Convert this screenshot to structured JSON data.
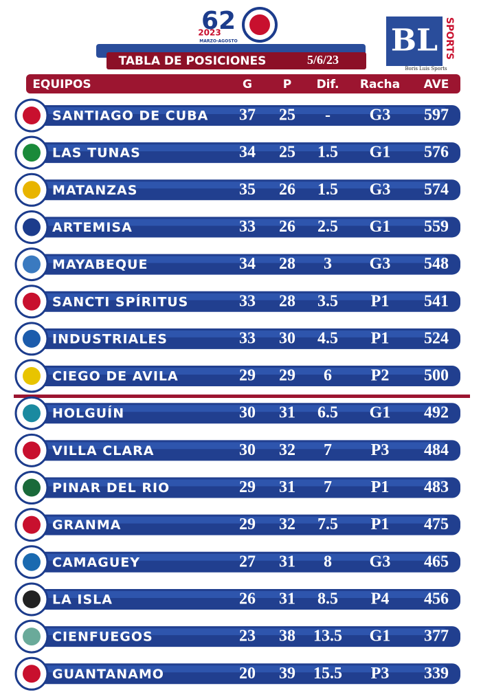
{
  "header": {
    "logo_number": "62",
    "logo_year": "2023",
    "logo_dates": "MARZO-AGOSTO",
    "brand": "SPORTS",
    "brand_sub": "Boris Luis Sports",
    "title": "TABLA DE POSICIONES",
    "date": "5/6/23"
  },
  "table": {
    "columns": [
      "EQUIPOS",
      "G",
      "P",
      "Dif.",
      "Racha",
      "AVE"
    ],
    "rows": [
      [
        "SANTIAGO DE CUBA",
        37,
        25,
        "-",
        "G3",
        597
      ],
      [
        "LAS TUNAS",
        34,
        25,
        1.5,
        "G1",
        576
      ],
      [
        "MATANZAS",
        35,
        26,
        1.5,
        "G3",
        574
      ],
      [
        "ARTEMISA",
        33,
        26,
        2.5,
        "G1",
        559
      ],
      [
        "MAYABEQUE",
        34,
        28,
        3,
        "G3",
        548
      ],
      [
        "SANCTI SPÍRITUS",
        33,
        28,
        3.5,
        "P1",
        541
      ],
      [
        "INDUSTRIALES",
        33,
        30,
        4.5,
        "P1",
        524
      ],
      [
        "CIEGO DE AVILA",
        29,
        29,
        6,
        "P2",
        500
      ],
      [
        "HOLGUÍN",
        30,
        31,
        6.5,
        "G1",
        492
      ],
      [
        "VILLA CLARA",
        30,
        32,
        7,
        "P3",
        484
      ],
      [
        "PINAR DEL RIO",
        29,
        31,
        7,
        "P1",
        483
      ],
      [
        "GRANMA",
        29,
        32,
        7.5,
        "P1",
        475
      ],
      [
        "CAMAGUEY",
        27,
        31,
        8,
        "G3",
        465
      ],
      [
        "LA ISLA",
        26,
        31,
        8.5,
        "P4",
        456
      ],
      [
        "CIENFUEGOS",
        23,
        38,
        13.5,
        "G1",
        377
      ],
      [
        "GUANTANAMO",
        20,
        39,
        15.5,
        "P3",
        339
      ]
    ]
  }
}
